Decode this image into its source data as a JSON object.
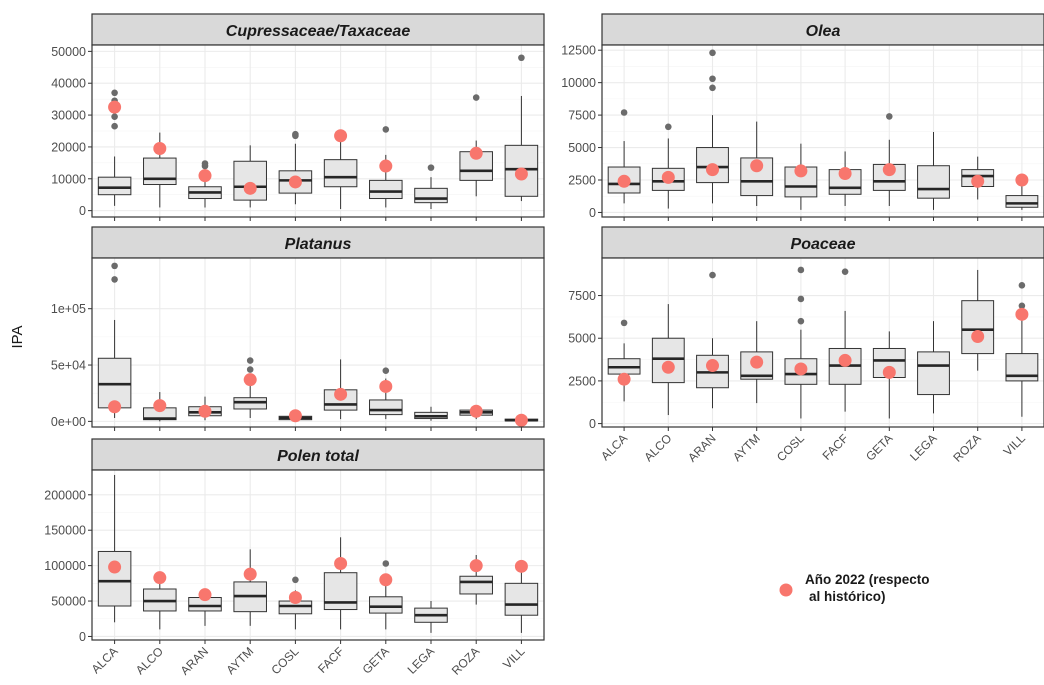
{
  "chart_data": {
    "type": "boxplot",
    "ylabel": "IPA",
    "categories": [
      "ALCA",
      "ALCO",
      "ARAN",
      "AYTM",
      "COSL",
      "FACF",
      "GETA",
      "LEGA",
      "ROZA",
      "VILL"
    ],
    "legend": {
      "label_line1": "Año 2022 (respecto",
      "label_line2": "al histórico)",
      "color": "#f8766d",
      "position": "bottom-right"
    },
    "colors": {
      "box_fill": "#e6e6e6",
      "box_stroke": "#333333",
      "outlier": "#6b6b6b",
      "highlight": "#f8766d",
      "strip_fill": "#d9d9d9",
      "grid": "#ebebeb"
    },
    "panels": [
      {
        "title": "Cupressaceae/Taxaceae",
        "ylim": [
          -2000,
          52000
        ],
        "yticks": [
          0,
          10000,
          20000,
          30000,
          40000,
          50000
        ],
        "ytick_labels": [
          "0",
          "10000",
          "20000",
          "30000",
          "40000",
          "50000"
        ],
        "show_x_labels": false,
        "boxes": [
          {
            "cat": "ALCA",
            "lw": 1500,
            "q1": 5000,
            "med": 7200,
            "q3": 10500,
            "uw": 17000,
            "out": [
              26500,
              29500,
              34500,
              37000
            ],
            "yr2022": 32500
          },
          {
            "cat": "ALCO",
            "lw": 1000,
            "q1": 8200,
            "med": 10000,
            "q3": 16500,
            "uw": 24500,
            "out": [],
            "yr2022": 19500
          },
          {
            "cat": "ARAN",
            "lw": 1000,
            "q1": 3800,
            "med": 5700,
            "q3": 7500,
            "uw": 13500,
            "out": [
              14000,
              14800
            ],
            "yr2022": 11000
          },
          {
            "cat": "AYTM",
            "lw": 1000,
            "q1": 3300,
            "med": 7500,
            "q3": 15500,
            "uw": 20500,
            "out": [],
            "yr2022": 7000
          },
          {
            "cat": "COSL",
            "lw": 2000,
            "q1": 5500,
            "med": 9500,
            "q3": 12500,
            "uw": 21000,
            "out": [
              23500,
              24000
            ],
            "yr2022": 9000
          },
          {
            "cat": "FACF",
            "lw": 500,
            "q1": 7500,
            "med": 10500,
            "q3": 16000,
            "uw": 24500,
            "out": [],
            "yr2022": 23500
          },
          {
            "cat": "GETA",
            "lw": 1000,
            "q1": 3800,
            "med": 6000,
            "q3": 9500,
            "uw": 17500,
            "out": [
              25500
            ],
            "yr2022": 14000
          },
          {
            "cat": "LEGA",
            "lw": 500,
            "q1": 2500,
            "med": 3800,
            "q3": 7000,
            "uw": 10500,
            "out": [
              13500
            ],
            "yr2022": null
          },
          {
            "cat": "ROZA",
            "lw": 4500,
            "q1": 9500,
            "med": 12500,
            "q3": 18500,
            "uw": 22000,
            "out": [
              35500
            ],
            "yr2022": 18000
          },
          {
            "cat": "VILL",
            "lw": 3000,
            "q1": 4500,
            "med": 13000,
            "q3": 20500,
            "uw": 36000,
            "out": [
              48000
            ],
            "yr2022": 11500
          }
        ]
      },
      {
        "title": "Olea",
        "ylim": [
          -350,
          12900
        ],
        "yticks": [
          0,
          2500,
          5000,
          7500,
          10000,
          12500
        ],
        "ytick_labels": [
          "0",
          "2500",
          "5000",
          "7500",
          "10000",
          "12500"
        ],
        "show_x_labels": false,
        "boxes": [
          {
            "cat": "ALCA",
            "lw": 700,
            "q1": 1500,
            "med": 2200,
            "q3": 3500,
            "uw": 5500,
            "out": [
              7700
            ],
            "yr2022": 2400
          },
          {
            "cat": "ALCO",
            "lw": 300,
            "q1": 1700,
            "med": 2400,
            "q3": 3400,
            "uw": 5700,
            "out": [
              6600
            ],
            "yr2022": 2700
          },
          {
            "cat": "ARAN",
            "lw": 700,
            "q1": 2300,
            "med": 3500,
            "q3": 5000,
            "uw": 7500,
            "out": [
              9600,
              10300,
              12300
            ],
            "yr2022": 3300
          },
          {
            "cat": "AYTM",
            "lw": 500,
            "q1": 1300,
            "med": 2400,
            "q3": 4200,
            "uw": 7000,
            "out": [],
            "yr2022": 3600
          },
          {
            "cat": "COSL",
            "lw": 200,
            "q1": 1200,
            "med": 2000,
            "q3": 3500,
            "uw": 5300,
            "out": [],
            "yr2022": 3200
          },
          {
            "cat": "FACF",
            "lw": 500,
            "q1": 1400,
            "med": 1900,
            "q3": 3300,
            "uw": 4700,
            "out": [],
            "yr2022": 3000
          },
          {
            "cat": "GETA",
            "lw": 500,
            "q1": 1700,
            "med": 2400,
            "q3": 3700,
            "uw": 5600,
            "out": [
              7400
            ],
            "yr2022": 3300
          },
          {
            "cat": "LEGA",
            "lw": 200,
            "q1": 1100,
            "med": 1800,
            "q3": 3600,
            "uw": 6200,
            "out": [],
            "yr2022": null
          },
          {
            "cat": "ROZA",
            "lw": 1000,
            "q1": 2000,
            "med": 2800,
            "q3": 3300,
            "uw": 4300,
            "out": [],
            "yr2022": 2400
          },
          {
            "cat": "VILL",
            "lw": 200,
            "q1": 400,
            "med": 700,
            "q3": 1300,
            "uw": 2200,
            "out": [],
            "yr2022": 2500
          }
        ]
      },
      {
        "title": "Platanus",
        "ylim": [
          -5000,
          145000
        ],
        "yticks": [
          0,
          50000,
          100000
        ],
        "ytick_labels": [
          "0e+00",
          "5e+04",
          "1e+05"
        ],
        "show_x_labels": false,
        "boxes": [
          {
            "cat": "ALCA",
            "lw": 3000,
            "q1": 12000,
            "med": 33000,
            "q3": 56000,
            "uw": 90000,
            "out": [
              126000,
              138000
            ],
            "yr2022": 13000
          },
          {
            "cat": "ALCO",
            "lw": 0,
            "q1": 1500,
            "med": 2500,
            "q3": 12000,
            "uw": 26000,
            "out": [],
            "yr2022": 14000
          },
          {
            "cat": "ARAN",
            "lw": 1000,
            "q1": 5000,
            "med": 8000,
            "q3": 13000,
            "uw": 22000,
            "out": [],
            "yr2022": 9000
          },
          {
            "cat": "AYTM",
            "lw": 3000,
            "q1": 11000,
            "med": 17000,
            "q3": 21000,
            "uw": 35000,
            "out": [
              46000,
              54000
            ],
            "yr2022": 37000
          },
          {
            "cat": "COSL",
            "lw": 0,
            "q1": 1500,
            "med": 3000,
            "q3": 4500,
            "uw": 7000,
            "out": [],
            "yr2022": 5000
          },
          {
            "cat": "FACF",
            "lw": 2000,
            "q1": 10000,
            "med": 15000,
            "q3": 28000,
            "uw": 55000,
            "out": [],
            "yr2022": 24000
          },
          {
            "cat": "GETA",
            "lw": 2000,
            "q1": 6000,
            "med": 10000,
            "q3": 19000,
            "uw": 38000,
            "out": [
              45000
            ],
            "yr2022": 31000
          },
          {
            "cat": "LEGA",
            "lw": 500,
            "q1": 2500,
            "med": 4500,
            "q3": 8000,
            "uw": 13000,
            "out": [],
            "yr2022": null
          },
          {
            "cat": "ROZA",
            "lw": 2000,
            "q1": 5500,
            "med": 8000,
            "q3": 10000,
            "uw": 12000,
            "out": [],
            "yr2022": 9000
          },
          {
            "cat": "VILL",
            "lw": 0,
            "q1": 500,
            "med": 1000,
            "q3": 2000,
            "uw": 3500,
            "out": [],
            "yr2022": 1000
          }
        ]
      },
      {
        "title": "Poaceae",
        "ylim": [
          -200,
          9700
        ],
        "yticks": [
          0,
          2500,
          5000,
          7500
        ],
        "ytick_labels": [
          "0",
          "2500",
          "5000",
          "7500"
        ],
        "show_x_labels": true,
        "boxes": [
          {
            "cat": "ALCA",
            "lw": 1300,
            "q1": 2900,
            "med": 3300,
            "q3": 3800,
            "uw": 4700,
            "out": [
              5900
            ],
            "yr2022": 2600
          },
          {
            "cat": "ALCO",
            "lw": 500,
            "q1": 2400,
            "med": 3800,
            "q3": 5000,
            "uw": 7000,
            "out": [],
            "yr2022": 3300
          },
          {
            "cat": "ARAN",
            "lw": 900,
            "q1": 2100,
            "med": 3000,
            "q3": 4000,
            "uw": 5000,
            "out": [
              8700
            ],
            "yr2022": 3400
          },
          {
            "cat": "AYTM",
            "lw": 1200,
            "q1": 2600,
            "med": 2800,
            "q3": 4200,
            "uw": 6000,
            "out": [],
            "yr2022": 3600
          },
          {
            "cat": "COSL",
            "lw": 300,
            "q1": 2300,
            "med": 2900,
            "q3": 3800,
            "uw": 5500,
            "out": [
              6000,
              7300,
              9000
            ],
            "yr2022": 3200
          },
          {
            "cat": "FACF",
            "lw": 700,
            "q1": 2300,
            "med": 3400,
            "q3": 4400,
            "uw": 6600,
            "out": [
              8900
            ],
            "yr2022": 3700
          },
          {
            "cat": "GETA",
            "lw": 300,
            "q1": 2700,
            "med": 3700,
            "q3": 4400,
            "uw": 5400,
            "out": [],
            "yr2022": 3000
          },
          {
            "cat": "LEGA",
            "lw": 600,
            "q1": 1700,
            "med": 3400,
            "q3": 4200,
            "uw": 6000,
            "out": [],
            "yr2022": null
          },
          {
            "cat": "ROZA",
            "lw": 3100,
            "q1": 4100,
            "med": 5500,
            "q3": 7200,
            "uw": 9000,
            "out": [],
            "yr2022": 5100
          },
          {
            "cat": "VILL",
            "lw": 400,
            "q1": 2500,
            "med": 2800,
            "q3": 4100,
            "uw": 6500,
            "out": [
              6900,
              8100
            ],
            "yr2022": 6400
          }
        ]
      },
      {
        "title": "Polen total",
        "ylim": [
          -5000,
          235000
        ],
        "yticks": [
          0,
          50000,
          100000,
          150000,
          200000
        ],
        "ytick_labels": [
          "0",
          "50000",
          "100000",
          "150000",
          "200000"
        ],
        "show_x_labels": true,
        "boxes": [
          {
            "cat": "ALCA",
            "lw": 20000,
            "q1": 43000,
            "med": 78000,
            "q3": 120000,
            "uw": 228000,
            "out": [],
            "yr2022": 98000
          },
          {
            "cat": "ALCO",
            "lw": 10000,
            "q1": 36000,
            "med": 50000,
            "q3": 67000,
            "uw": 85000,
            "out": [],
            "yr2022": 83000
          },
          {
            "cat": "ARAN",
            "lw": 15000,
            "q1": 36000,
            "med": 43000,
            "q3": 55000,
            "uw": 62000,
            "out": [],
            "yr2022": 59000
          },
          {
            "cat": "AYTM",
            "lw": 15000,
            "q1": 35000,
            "med": 57000,
            "q3": 77000,
            "uw": 123000,
            "out": [],
            "yr2022": 88000
          },
          {
            "cat": "COSL",
            "lw": 10000,
            "q1": 32000,
            "med": 43000,
            "q3": 50000,
            "uw": 65000,
            "out": [
              80000
            ],
            "yr2022": 55000
          },
          {
            "cat": "FACF",
            "lw": 10000,
            "q1": 38000,
            "med": 48000,
            "q3": 90000,
            "uw": 140000,
            "out": [],
            "yr2022": 103000
          },
          {
            "cat": "GETA",
            "lw": 10000,
            "q1": 33000,
            "med": 42000,
            "q3": 56000,
            "uw": 82000,
            "out": [
              103000
            ],
            "yr2022": 80000
          },
          {
            "cat": "LEGA",
            "lw": 5000,
            "q1": 20000,
            "med": 30000,
            "q3": 40000,
            "uw": 50000,
            "out": [],
            "yr2022": null
          },
          {
            "cat": "ROZA",
            "lw": 45000,
            "q1": 60000,
            "med": 77000,
            "q3": 85000,
            "uw": 115000,
            "out": [],
            "yr2022": 100000
          },
          {
            "cat": "VILL",
            "lw": 5000,
            "q1": 30000,
            "med": 45000,
            "q3": 75000,
            "uw": 100000,
            "out": [],
            "yr2022": 99000
          }
        ]
      }
    ]
  }
}
